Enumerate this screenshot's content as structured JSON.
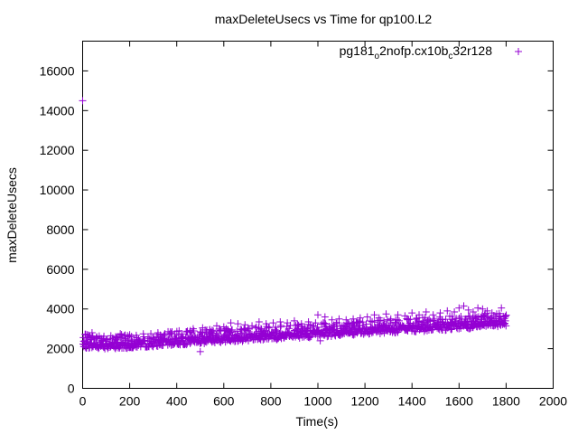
{
  "chart_data": {
    "type": "scatter",
    "title": "maxDeleteUsecs vs Time for qp100.L2",
    "xlabel": "Time(s)",
    "ylabel": "maxDeleteUsecs",
    "xlim": [
      0,
      2000
    ],
    "ylim": [
      0,
      17500
    ],
    "xticks": [
      0,
      200,
      400,
      600,
      800,
      1000,
      1200,
      1400,
      1600,
      1800,
      2000
    ],
    "yticks": [
      0,
      2000,
      4000,
      6000,
      8000,
      10000,
      12000,
      14000,
      16000
    ],
    "grid": false,
    "legend_position": "top-right",
    "series": [
      {
        "name": "pg181_o2nofp.cx10b_c32r128",
        "legend": {
          "base1": "pg181",
          "sub1": "o",
          "base2": "2nofp.cx10b",
          "sub2": "c",
          "base3": "32r128"
        },
        "color": "#9400d3",
        "marker": "+",
        "trend_x": [
          0,
          100,
          200,
          300,
          400,
          500,
          600,
          700,
          800,
          900,
          1000,
          1100,
          1200,
          1300,
          1400,
          1500,
          1600,
          1700,
          1800
        ],
        "trend_y": [
          2200,
          2150,
          2200,
          2280,
          2350,
          2420,
          2500,
          2560,
          2620,
          2690,
          2760,
          2830,
          2900,
          2960,
          3020,
          3080,
          3150,
          3230,
          3330
        ],
        "points": [
          [
            0,
            14500
          ],
          [
            5,
            2100
          ],
          [
            10,
            2400
          ],
          [
            15,
            2250
          ],
          [
            20,
            2700
          ],
          [
            30,
            2550
          ],
          [
            40,
            2800
          ],
          [
            60,
            2600
          ],
          [
            80,
            2500
          ],
          [
            100,
            2450
          ],
          [
            120,
            2650
          ],
          [
            140,
            2600
          ],
          [
            160,
            2750
          ],
          [
            180,
            2500
          ],
          [
            200,
            2700
          ],
          [
            230,
            2550
          ],
          [
            260,
            2600
          ],
          [
            290,
            2750
          ],
          [
            320,
            2800
          ],
          [
            350,
            2750
          ],
          [
            380,
            2850
          ],
          [
            410,
            2900
          ],
          [
            440,
            2850
          ],
          [
            470,
            3000
          ],
          [
            500,
            1850
          ],
          [
            510,
            3050
          ],
          [
            540,
            2950
          ],
          [
            570,
            3150
          ],
          [
            600,
            3100
          ],
          [
            630,
            3300
          ],
          [
            660,
            3250
          ],
          [
            690,
            3200
          ],
          [
            720,
            3150
          ],
          [
            750,
            3350
          ],
          [
            780,
            3250
          ],
          [
            810,
            3300
          ],
          [
            840,
            3350
          ],
          [
            870,
            3300
          ],
          [
            900,
            3400
          ],
          [
            930,
            3250
          ],
          [
            960,
            3350
          ],
          [
            990,
            3300
          ],
          [
            1000,
            3700
          ],
          [
            1010,
            2400
          ],
          [
            1030,
            3600
          ],
          [
            1060,
            3450
          ],
          [
            1090,
            3500
          ],
          [
            1120,
            3450
          ],
          [
            1150,
            3500
          ],
          [
            1180,
            3550
          ],
          [
            1210,
            3600
          ],
          [
            1240,
            3700
          ],
          [
            1260,
            3550
          ],
          [
            1290,
            3750
          ],
          [
            1310,
            3500
          ],
          [
            1340,
            3700
          ],
          [
            1370,
            3650
          ],
          [
            1400,
            3800
          ],
          [
            1430,
            3700
          ],
          [
            1460,
            3850
          ],
          [
            1490,
            3700
          ],
          [
            1520,
            3800
          ],
          [
            1550,
            3900
          ],
          [
            1580,
            3850
          ],
          [
            1600,
            4050
          ],
          [
            1620,
            4150
          ],
          [
            1640,
            3950
          ],
          [
            1660,
            3850
          ],
          [
            1680,
            4050
          ],
          [
            1700,
            4000
          ],
          [
            1720,
            3900
          ],
          [
            1740,
            3800
          ],
          [
            1760,
            3750
          ],
          [
            1780,
            4050
          ],
          [
            1795,
            3600
          ]
        ]
      }
    ]
  }
}
